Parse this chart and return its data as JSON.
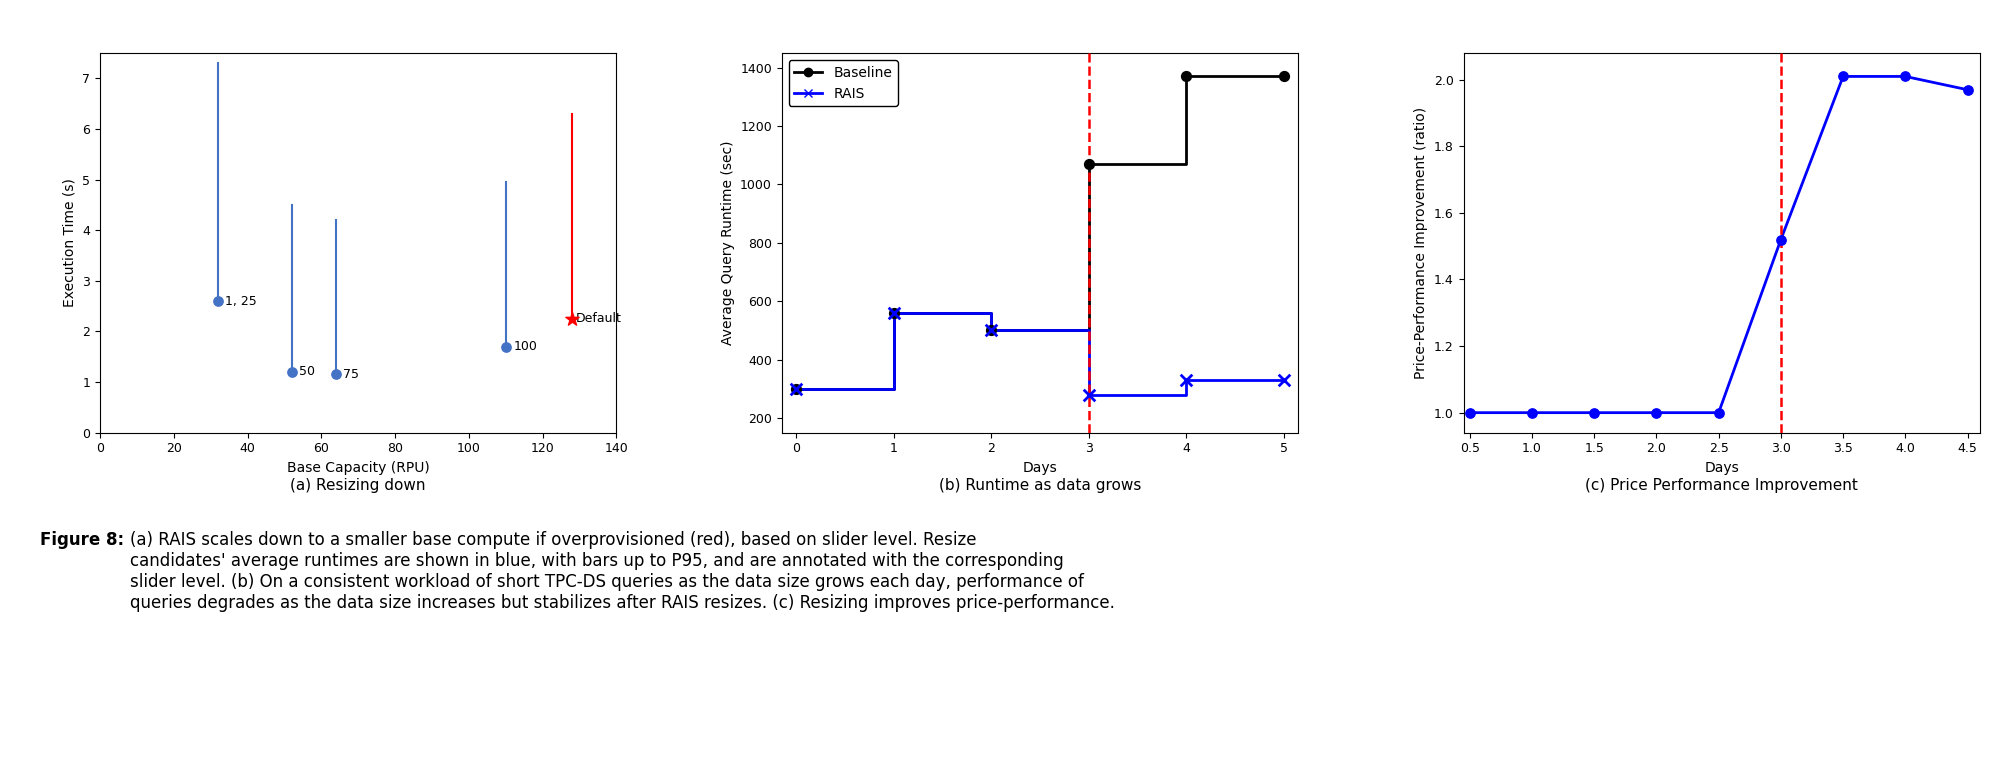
{
  "plot_a": {
    "title": "(a) Resizing down",
    "xlabel": "Base Capacity (RPU)",
    "ylabel": "Execution Time (s)",
    "xlim": [
      0,
      140
    ],
    "ylim": [
      0,
      7.5
    ],
    "blue_points": [
      {
        "x": 32,
        "y_low": 2.6,
        "y_high": 7.3,
        "label": "1, 25"
      },
      {
        "x": 52,
        "y_low": 1.2,
        "y_high": 4.5,
        "label": "50"
      },
      {
        "x": 64,
        "y_low": 1.15,
        "y_high": 4.2,
        "label": "75"
      },
      {
        "x": 110,
        "y_low": 1.7,
        "y_high": 4.95,
        "label": "100"
      }
    ],
    "red_point": {
      "x": 128,
      "y_low": 2.25,
      "y_high": 6.3,
      "label": "Default"
    },
    "xticks": [
      0,
      20,
      40,
      60,
      80,
      100,
      120,
      140
    ],
    "yticks": [
      0,
      1,
      2,
      3,
      4,
      5,
      6,
      7
    ]
  },
  "plot_b": {
    "title": "(b) Runtime as data grows",
    "xlabel": "Days",
    "ylabel": "Average Query Runtime (sec)",
    "xlim": [
      -0.15,
      5.15
    ],
    "ylim": [
      150,
      1450
    ],
    "red_vline": 3,
    "baseline_x": [
      0,
      1,
      1,
      2,
      2,
      3,
      3,
      4,
      4,
      5
    ],
    "baseline_y": [
      300,
      300,
      560,
      560,
      500,
      500,
      1070,
      1070,
      1370,
      1370
    ],
    "baseline_dots_x": [
      0,
      1,
      2,
      3,
      4,
      5
    ],
    "baseline_dots_y": [
      300,
      560,
      500,
      1070,
      1370,
      1370
    ],
    "rais_x": [
      0,
      1,
      1,
      2,
      2,
      3,
      3,
      4,
      4,
      5
    ],
    "rais_y": [
      300,
      300,
      560,
      560,
      500,
      500,
      280,
      280,
      330,
      330
    ],
    "rais_dots_x": [
      0,
      1,
      2,
      3,
      4,
      5
    ],
    "rais_dots_y": [
      300,
      560,
      500,
      280,
      330,
      330
    ],
    "xticks": [
      0,
      1,
      2,
      3,
      4,
      5
    ],
    "yticks": [
      200,
      400,
      600,
      800,
      1000,
      1200,
      1400
    ]
  },
  "plot_c": {
    "title": "(c) Price Performance Improvement",
    "xlabel": "Days",
    "ylabel": "Price-Performance Improvement (ratio)",
    "xlim": [
      0.45,
      4.6
    ],
    "ylim": [
      0.94,
      2.08
    ],
    "red_vline": 3.0,
    "line_x": [
      0.5,
      1.0,
      1.5,
      2.0,
      2.5,
      3.0,
      3.5,
      4.0,
      4.5
    ],
    "line_y": [
      1.0,
      1.0,
      1.0,
      1.0,
      1.0,
      1.52,
      2.01,
      2.01,
      1.97
    ],
    "xticks": [
      0.5,
      1.0,
      1.5,
      2.0,
      2.5,
      3.0,
      3.5,
      4.0,
      4.5
    ],
    "yticks": [
      1.0,
      1.2,
      1.4,
      1.6,
      1.8,
      2.0
    ]
  },
  "caption_bold": "Figure 8: ",
  "caption_normal": "(a) RAIS scales down to a smaller base compute if overprovisioned (red), based on slider level. Resize\ncandidates' average runtimes are shown in blue, with bars up to P95, and are annotated with the corresponding\nslider level. (b) On a consistent workload of short TPC-DS queries as the data size grows each day, performance of\nqueries degrades as the data size increases but stabilizes after RAIS resizes. (c) Resizing improves price-performance.",
  "subtitle_a": "(a) Resizing down",
  "subtitle_b": "(b) Runtime as data grows",
  "subtitle_c": "(c) Price Performance Improvement",
  "figure_bg": "#ffffff"
}
